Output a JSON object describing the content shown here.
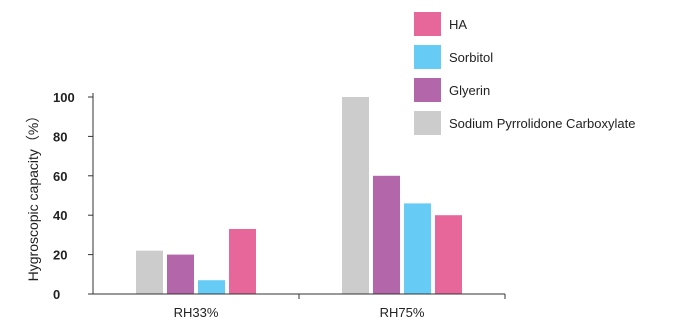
{
  "chart_data": {
    "type": "bar",
    "title": "",
    "xlabel": "",
    "ylabel": "Hygroscopic capacity（%）",
    "ylim": [
      0,
      100
    ],
    "yticks": [
      0,
      20,
      40,
      60,
      80,
      100
    ],
    "grid": false,
    "legend_position": "top-right",
    "categories": [
      "RH33%",
      "RH75%"
    ],
    "series": [
      {
        "name": "Sodium Pyrrolidone Carboxylate",
        "color": "#cccccc",
        "values": [
          22,
          100
        ]
      },
      {
        "name": "Glyerin",
        "color": "#b366aa",
        "values": [
          20,
          60
        ]
      },
      {
        "name": "Sorbitol",
        "color": "#66ccf5",
        "values": [
          7,
          46
        ]
      },
      {
        "name": "HA",
        "color": "#e8679b",
        "values": [
          33,
          40
        ]
      }
    ],
    "legend_order": [
      "HA",
      "Sorbitol",
      "Glyerin",
      "Sodium Pyrrolidone Carboxylate"
    ]
  }
}
